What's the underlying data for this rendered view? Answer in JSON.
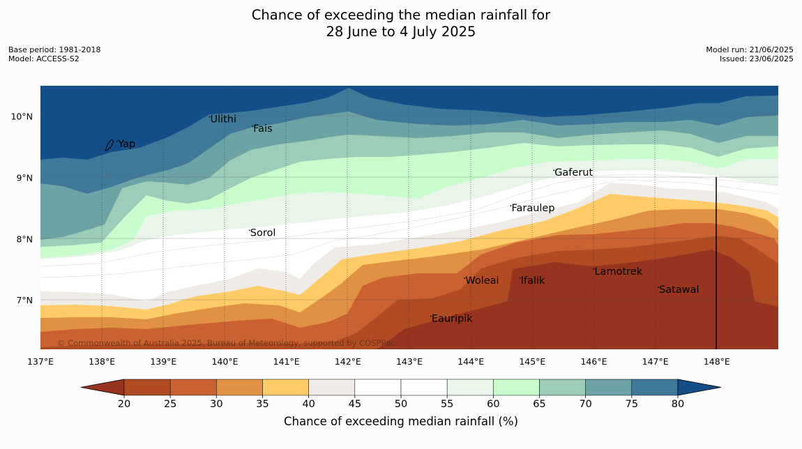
{
  "title": {
    "line1": "Chance of exceeding the median rainfall for",
    "line2": "28 June to 4 July 2025"
  },
  "meta": {
    "base_period": "Base period: 1981-2018",
    "model": "Model: ACCESS-S2",
    "model_run": "Model run: 21/06/2025",
    "issued": "Issued: 23/06/2025"
  },
  "copyright": "© Commonwealth of Australia 2025, Bureau of Meteorology, supported by COSPPac",
  "map": {
    "lon_range": [
      137.0,
      149.0
    ],
    "lat_range": [
      6.2,
      10.5
    ],
    "lon_ticks": [
      "137°E",
      "138°E",
      "139°E",
      "140°E",
      "141°E",
      "142°E",
      "143°E",
      "144°E",
      "145°E",
      "146°E",
      "147°E",
      "148°E"
    ],
    "lat_ticks": [
      "7°N",
      "8°N",
      "9°N",
      "10°N"
    ],
    "places": [
      {
        "name": "Ulithi",
        "lon": 139.75,
        "lat": 9.9
      },
      {
        "name": "Yap",
        "lon": 138.25,
        "lat": 9.5
      },
      {
        "name": "Fais",
        "lon": 140.45,
        "lat": 9.75
      },
      {
        "name": "Gaferut",
        "lon": 145.35,
        "lat": 9.03
      },
      {
        "name": "Faraulep",
        "lon": 144.65,
        "lat": 8.45
      },
      {
        "name": "Sorol",
        "lon": 140.4,
        "lat": 8.05
      },
      {
        "name": "Woleai",
        "lon": 143.9,
        "lat": 7.27
      },
      {
        "name": "Ifalik",
        "lon": 144.8,
        "lat": 7.27
      },
      {
        "name": "Lamotrek",
        "lon": 146.0,
        "lat": 7.42
      },
      {
        "name": "Satawal",
        "lon": 147.05,
        "lat": 7.12
      },
      {
        "name": "Eauripik",
        "lon": 143.35,
        "lat": 6.65
      }
    ]
  },
  "colorbar": {
    "label": "Chance of exceeding median rainfall (%)",
    "ticks": [
      "20",
      "25",
      "30",
      "35",
      "40",
      "45",
      "50",
      "55",
      "60",
      "65",
      "70",
      "75",
      "80"
    ],
    "colors": [
      "#b14b24",
      "#c96230",
      "#e09144",
      "#fdcb68",
      "#efebe6",
      "#ffffff",
      "#ffffff",
      "#e9f5e9",
      "#c8fccc",
      "#9ccdb8",
      "#6ca3a4",
      "#3f7899"
    ],
    "under_color": "#963420",
    "over_color": "#144e89"
  }
}
